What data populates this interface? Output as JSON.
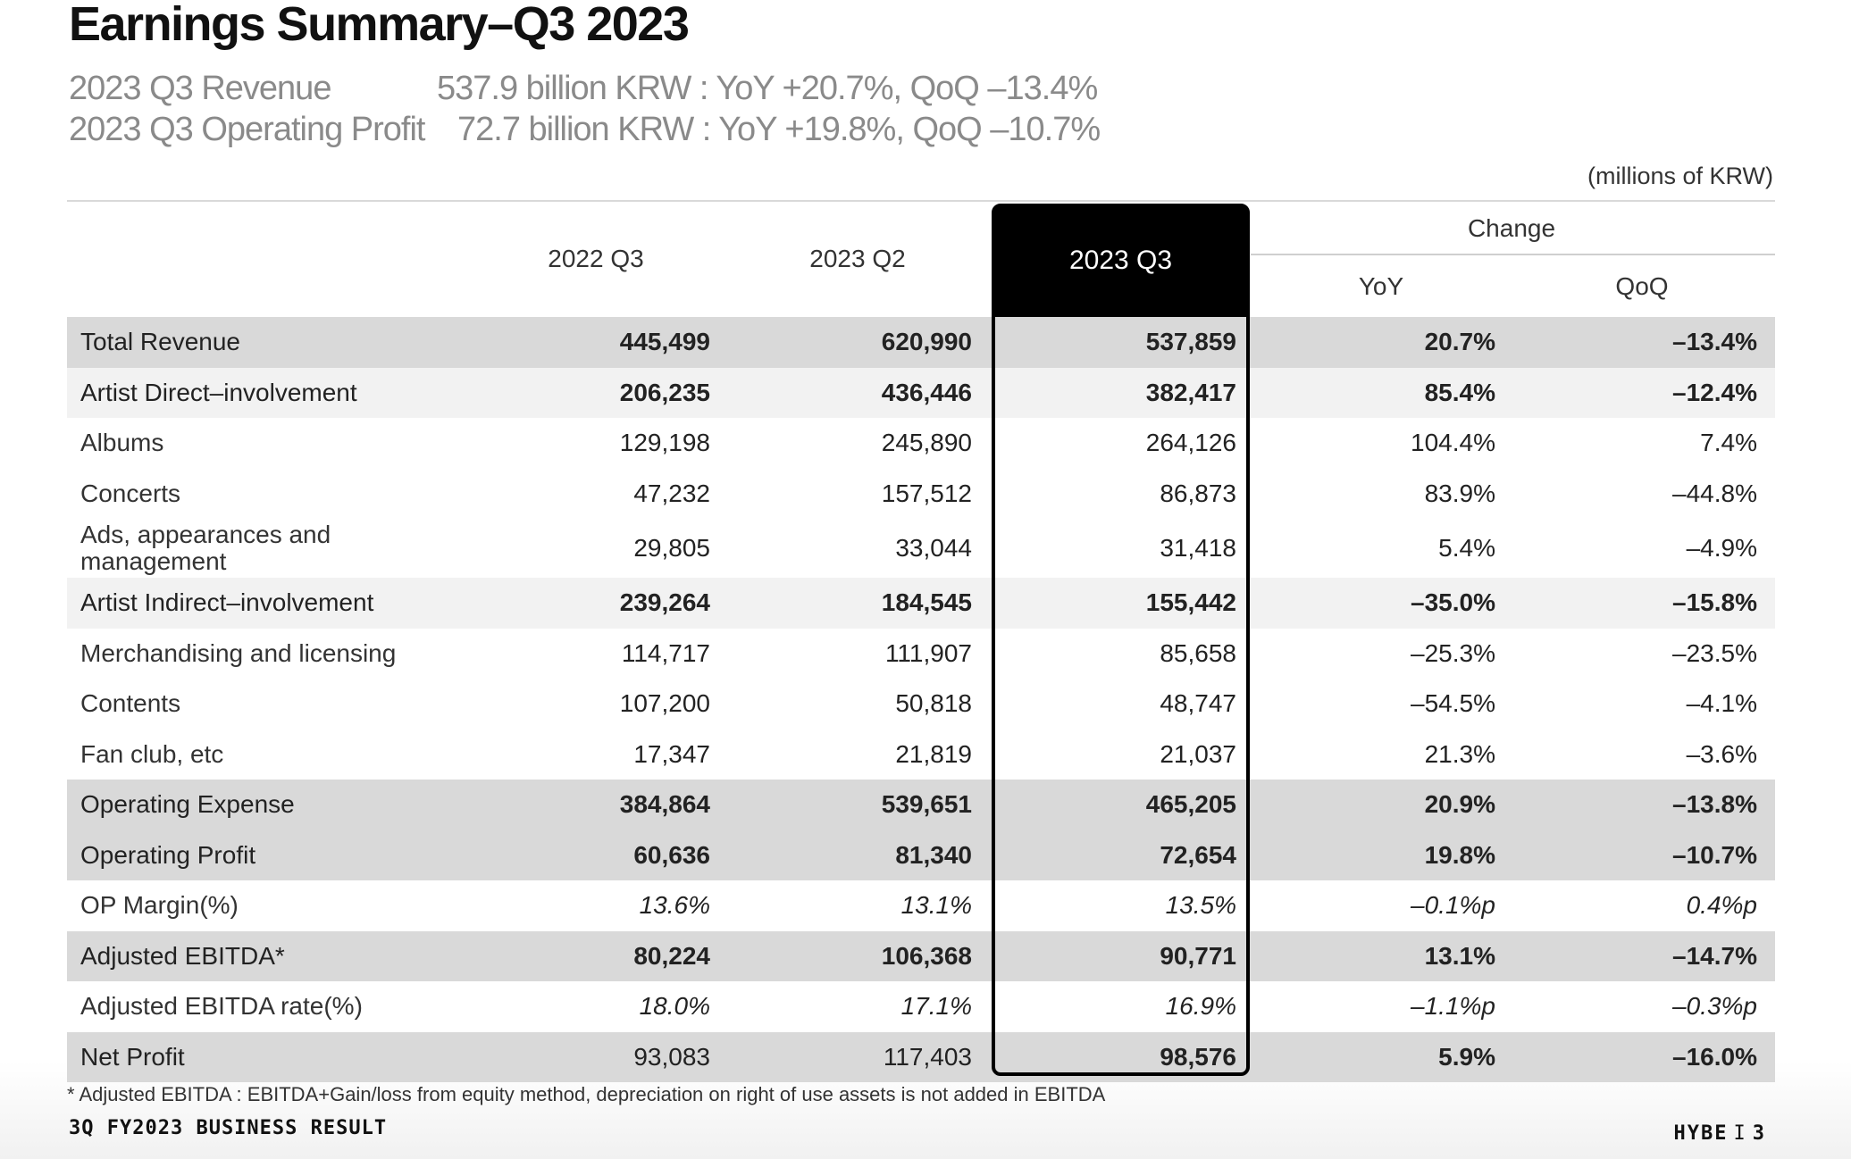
{
  "title": "Earnings Summary–Q3 2023",
  "summary": {
    "revenue_label": "2023 Q3 Revenue",
    "revenue_value": "537.9 billion KRW : YoY  +20.7%, QoQ  –13.4%",
    "op_label": "2023 Q3 Operating Profit",
    "op_value": "72.7 billion KRW : YoY  +19.8%, QoQ  –10.7%"
  },
  "units": "(millions of KRW)",
  "columns": {
    "col1": "2022 Q3",
    "col2": "2023 Q2",
    "col3": "2023 Q3",
    "change": "Change",
    "yoy": "YoY",
    "qoq": "QoQ"
  },
  "rows": [
    {
      "label": "Total Revenue",
      "v1": "445,499",
      "v2": "620,990",
      "v3": "537,859",
      "yoy": "20.7%",
      "qoq": "–13.4%"
    },
    {
      "label": "Artist Direct–involvement",
      "v1": "206,235",
      "v2": "436,446",
      "v3": "382,417",
      "yoy": "85.4%",
      "qoq": "–12.4%"
    },
    {
      "label": "Albums",
      "v1": "129,198",
      "v2": "245,890",
      "v3": "264,126",
      "yoy": "104.4%",
      "qoq": "7.4%"
    },
    {
      "label": "Concerts",
      "v1": "47,232",
      "v2": "157,512",
      "v3": "86,873",
      "yoy": "83.9%",
      "qoq": "–44.8%"
    },
    {
      "label": "Ads, appearances and management",
      "v1": "29,805",
      "v2": "33,044",
      "v3": "31,418",
      "yoy": "5.4%",
      "qoq": "–4.9%"
    },
    {
      "label": "Artist Indirect–involvement",
      "v1": "239,264",
      "v2": "184,545",
      "v3": "155,442",
      "yoy": "–35.0%",
      "qoq": "–15.8%"
    },
    {
      "label": "Merchandising and licensing",
      "v1": "114,717",
      "v2": "111,907",
      "v3": "85,658",
      "yoy": "–25.3%",
      "qoq": "–23.5%"
    },
    {
      "label": "Contents",
      "v1": "107,200",
      "v2": "50,818",
      "v3": "48,747",
      "yoy": "–54.5%",
      "qoq": "–4.1%"
    },
    {
      "label": "Fan club, etc",
      "v1": "17,347",
      "v2": "21,819",
      "v3": "21,037",
      "yoy": "21.3%",
      "qoq": "–3.6%"
    },
    {
      "label": "Operating Expense",
      "v1": "384,864",
      "v2": "539,651",
      "v3": "465,205",
      "yoy": "20.9%",
      "qoq": "–13.8%"
    },
    {
      "label": "Operating Profit",
      "v1": "60,636",
      "v2": "81,340",
      "v3": "72,654",
      "yoy": "19.8%",
      "qoq": "–10.7%"
    },
    {
      "label": "OP Margin(%)",
      "v1": "13.6%",
      "v2": "13.1%",
      "v3": "13.5%",
      "yoy": "–0.1%p",
      "qoq": "0.4%p"
    },
    {
      "label": "Adjusted EBITDA*",
      "v1": "80,224",
      "v2": "106,368",
      "v3": "90,771",
      "yoy": "13.1%",
      "qoq": "–14.7%"
    },
    {
      "label": "Adjusted EBITDA rate(%)",
      "v1": "18.0%",
      "v2": "17.1%",
      "v3": "16.9%",
      "yoy": "–1.1%p",
      "qoq": "–0.3%p"
    },
    {
      "label": "Net Profit",
      "v1": "93,083",
      "v2": "117,403",
      "v3": "98,576",
      "yoy": "5.9%",
      "qoq": "–16.0%"
    }
  ],
  "footnote": "* Adjusted EBITDA : EBITDA+Gain/loss from equity method, depreciation on right of use assets is not added in EBITDA",
  "footer": {
    "left": "3Q FY2023 BUSINESS RESULT",
    "brand": "HYBE",
    "separator": "I",
    "page": "3"
  }
}
